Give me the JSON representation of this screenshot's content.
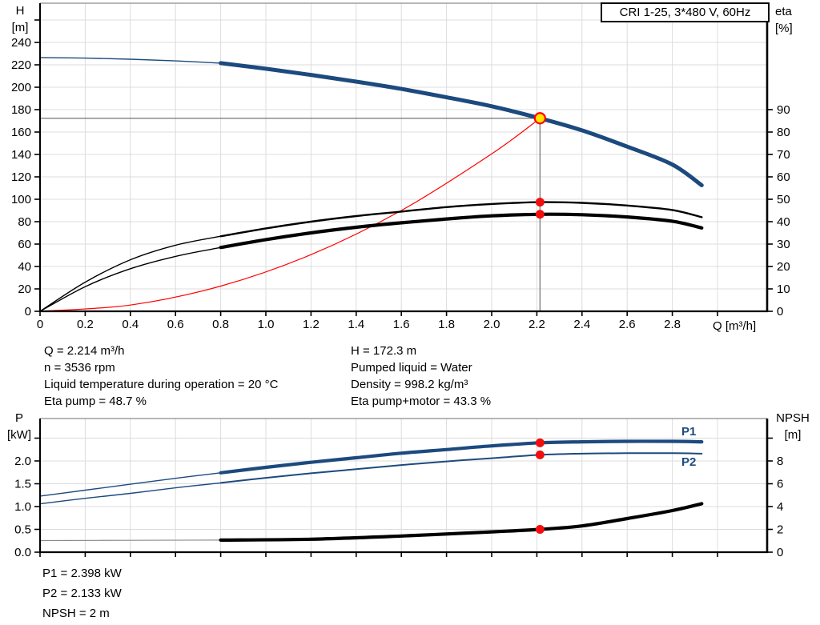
{
  "title_box": {
    "label": "CRI 1-25, 3*480 V, 60Hz"
  },
  "colors": {
    "curve_blue": "#1c4a7e",
    "curve_red": "#ff0000",
    "curve_black": "#000000",
    "npsh_thin_gray": "#8a8a8a",
    "grid": "#dcdcdc",
    "plot_top_border": "#8c8c8c",
    "op_line": "#7f7f7f",
    "marker_red": "#f00e0e",
    "marker_yellow": "#ffe600",
    "label_blue": "#1c4a7e"
  },
  "chart_data": [
    {
      "type": "line",
      "name": "hq-eta-chart",
      "x": {
        "label": "Q [m³/h]",
        "range": [
          0,
          3.22
        ],
        "ticks": [
          {
            "q": 0,
            "label": "0"
          },
          {
            "q": 0.2,
            "label": "0.2"
          },
          {
            "q": 0.4,
            "label": "0.4"
          },
          {
            "q": 0.6,
            "label": "0.6"
          },
          {
            "q": 0.8,
            "label": "0.8"
          },
          {
            "q": 1,
            "label": "1.0"
          },
          {
            "q": 1.2,
            "label": "1.2"
          },
          {
            "q": 1.4,
            "label": "1.4"
          },
          {
            "q": 1.6,
            "label": "1.6"
          },
          {
            "q": 1.8,
            "label": "1.8"
          },
          {
            "q": 2,
            "label": "2.0"
          },
          {
            "q": 2.2,
            "label": "2.2"
          },
          {
            "q": 2.4,
            "label": "2.4"
          },
          {
            "q": 2.6,
            "label": "2.6"
          },
          {
            "q": 2.8,
            "label": "2.8"
          },
          {
            "q": 3,
            "label": ""
          }
        ]
      },
      "y_left": {
        "label_lines": [
          "H",
          "[m]"
        ],
        "range": [
          0,
          275
        ],
        "ticks": [
          {
            "v": 0,
            "label": "0"
          },
          {
            "v": 20,
            "label": "20"
          },
          {
            "v": 40,
            "label": "40"
          },
          {
            "v": 60,
            "label": "60"
          },
          {
            "v": 80,
            "label": "80"
          },
          {
            "v": 100,
            "label": "100"
          },
          {
            "v": 120,
            "label": "120"
          },
          {
            "v": 140,
            "label": "140"
          },
          {
            "v": 160,
            "label": "160"
          },
          {
            "v": 180,
            "label": "180"
          },
          {
            "v": 200,
            "label": "200"
          },
          {
            "v": 220,
            "label": "220"
          },
          {
            "v": 240,
            "label": "240"
          },
          {
            "v": 260,
            "label": ""
          }
        ]
      },
      "y_right": {
        "label_lines": [
          "eta",
          "[%]"
        ],
        "range": [
          0,
          98
        ],
        "ticks": [
          {
            "v": 0,
            "label": "0"
          },
          {
            "v": 10,
            "label": "10"
          },
          {
            "v": 20,
            "label": "20"
          },
          {
            "v": 30,
            "label": "30"
          },
          {
            "v": 40,
            "label": "40"
          },
          {
            "v": 50,
            "label": "50"
          },
          {
            "v": 60,
            "label": "60"
          },
          {
            "v": 70,
            "label": "70"
          },
          {
            "v": 80,
            "label": "80"
          },
          {
            "v": 90,
            "label": "90"
          }
        ]
      },
      "op_point": {
        "q": 2.214,
        "v": 172.3
      },
      "series": [
        {
          "id": "pump-curve",
          "label": "",
          "axis": "left",
          "color": "#1c4a7e",
          "segments": [
            {
              "width": 1.4,
              "points": [
                [
                  0,
                  226.5
                ],
                [
                  0.2,
                  226
                ],
                [
                  0.4,
                  225
                ],
                [
                  0.6,
                  223.5
                ],
                [
                  0.8,
                  221.5
                ]
              ]
            },
            {
              "width": 5,
              "points": [
                [
                  0.8,
                  221.5
                ],
                [
                  1.0,
                  216.5
                ],
                [
                  1.2,
                  211
                ],
                [
                  1.4,
                  205
                ],
                [
                  1.6,
                  198.5
                ],
                [
                  1.8,
                  191
                ],
                [
                  2.0,
                  183
                ],
                [
                  2.214,
                  172.3
                ],
                [
                  2.4,
                  161.5
                ],
                [
                  2.6,
                  147
                ],
                [
                  2.8,
                  131
                ],
                [
                  2.93,
                  112.5
                ]
              ]
            }
          ]
        },
        {
          "id": "system-curve",
          "label": "",
          "axis": "left",
          "color": "#ff0000",
          "segments": [
            {
              "width": 1.2,
              "points": [
                [
                  0,
                  0
                ],
                [
                  0.4,
                  5.6
                ],
                [
                  0.8,
                  22.5
                ],
                [
                  1.2,
                  50.6
                ],
                [
                  1.6,
                  90
                ],
                [
                  2.0,
                  140.6
                ],
                [
                  2.214,
                  172.3
                ]
              ]
            }
          ]
        },
        {
          "id": "eta-pump-curve",
          "label": "",
          "axis": "right",
          "color": "#000000",
          "segments": [
            {
              "width": 1.4,
              "points": [
                [
                  0,
                  0
                ],
                [
                  0.2,
                  13
                ],
                [
                  0.4,
                  23
                ],
                [
                  0.6,
                  29.5
                ],
                [
                  0.8,
                  33.5
                ]
              ]
            },
            {
              "width": 2.4,
              "points": [
                [
                  0.8,
                  33.5
                ],
                [
                  1.0,
                  37
                ],
                [
                  1.2,
                  40
                ],
                [
                  1.4,
                  42.5
                ],
                [
                  1.6,
                  44.5
                ],
                [
                  1.8,
                  46.5
                ],
                [
                  2.0,
                  47.9
                ],
                [
                  2.214,
                  48.7
                ],
                [
                  2.4,
                  48.4
                ],
                [
                  2.6,
                  47.2
                ],
                [
                  2.8,
                  45.2
                ],
                [
                  2.93,
                  42
                ]
              ]
            }
          ]
        },
        {
          "id": "eta-pump-motor-curve",
          "label": "",
          "axis": "right",
          "color": "#000000",
          "segments": [
            {
              "width": 1.4,
              "points": [
                [
                  0,
                  0
                ],
                [
                  0.2,
                  11
                ],
                [
                  0.4,
                  19
                ],
                [
                  0.6,
                  24.5
                ],
                [
                  0.8,
                  28.5
                ]
              ]
            },
            {
              "width": 4.2,
              "points": [
                [
                  0.8,
                  28.5
                ],
                [
                  1.0,
                  32
                ],
                [
                  1.2,
                  35
                ],
                [
                  1.4,
                  37.5
                ],
                [
                  1.6,
                  39.5
                ],
                [
                  1.8,
                  41.2
                ],
                [
                  2.0,
                  42.6
                ],
                [
                  2.214,
                  43.3
                ],
                [
                  2.4,
                  43.1
                ],
                [
                  2.6,
                  42.1
                ],
                [
                  2.8,
                  40.2
                ],
                [
                  2.93,
                  37.2
                ]
              ]
            }
          ]
        }
      ],
      "markers": [
        {
          "id": "eta-pump-point",
          "axis": "right",
          "q": 2.214,
          "v": 48.7,
          "r": 5.5,
          "fill": "#f00e0e",
          "interactable": false
        },
        {
          "id": "eta-pump-motor-point",
          "axis": "right",
          "q": 2.214,
          "v": 43.3,
          "r": 5.5,
          "fill": "#f00e0e",
          "interactable": false
        },
        {
          "id": "operating-point",
          "axis": "left",
          "q": 2.214,
          "v": 172.3,
          "r": 6.5,
          "fill": "#ffe600",
          "stroke": "#ff0000",
          "sw": 2.2,
          "interactable": true
        }
      ]
    },
    {
      "type": "line",
      "name": "power-npsh-chart",
      "x": {
        "label": "",
        "range": [
          0,
          3.22
        ],
        "ticks": [
          {
            "q": 0,
            "label": ""
          },
          {
            "q": 0.2,
            "label": ""
          },
          {
            "q": 0.4,
            "label": ""
          },
          {
            "q": 0.6,
            "label": ""
          },
          {
            "q": 0.8,
            "label": ""
          },
          {
            "q": 1,
            "label": ""
          },
          {
            "q": 1.2,
            "label": ""
          },
          {
            "q": 1.4,
            "label": ""
          },
          {
            "q": 1.6,
            "label": ""
          },
          {
            "q": 1.8,
            "label": ""
          },
          {
            "q": 2,
            "label": ""
          },
          {
            "q": 2.2,
            "label": ""
          },
          {
            "q": 2.4,
            "label": ""
          },
          {
            "q": 2.6,
            "label": ""
          },
          {
            "q": 2.8,
            "label": ""
          },
          {
            "q": 3,
            "label": ""
          }
        ]
      },
      "y_left": {
        "label_lines": [
          "P",
          "[kW]"
        ],
        "range": [
          0,
          2.93
        ],
        "ticks": [
          {
            "v": 0,
            "label": "0.0"
          },
          {
            "v": 0.5,
            "label": "0.5"
          },
          {
            "v": 1,
            "label": "1.0"
          },
          {
            "v": 1.5,
            "label": "1.5"
          },
          {
            "v": 2,
            "label": "2.0"
          },
          {
            "v": 2.5,
            "label": ""
          }
        ]
      },
      "y_right": {
        "label_lines": [
          "NPSH",
          "[m]"
        ],
        "range": [
          0,
          11.7
        ],
        "ticks": [
          {
            "v": 0,
            "label": "0"
          },
          {
            "v": 2,
            "label": "2"
          },
          {
            "v": 4,
            "label": "4"
          },
          {
            "v": 6,
            "label": "6"
          },
          {
            "v": 8,
            "label": "8"
          },
          {
            "v": 10,
            "label": ""
          }
        ]
      },
      "series": [
        {
          "id": "p1-curve",
          "label": "P1",
          "axis": "left",
          "color": "#1c4a7e",
          "segments": [
            {
              "width": 1.4,
              "points": [
                [
                  0,
                  1.23
                ],
                [
                  0.2,
                  1.36
                ],
                [
                  0.4,
                  1.49
                ],
                [
                  0.6,
                  1.62
                ],
                [
                  0.8,
                  1.74
                ]
              ]
            },
            {
              "width": 4.2,
              "points": [
                [
                  0.8,
                  1.74
                ],
                [
                  1.0,
                  1.86
                ],
                [
                  1.2,
                  1.97
                ],
                [
                  1.4,
                  2.07
                ],
                [
                  1.6,
                  2.17
                ],
                [
                  1.8,
                  2.25
                ],
                [
                  2.0,
                  2.33
                ],
                [
                  2.214,
                  2.398
                ],
                [
                  2.4,
                  2.42
                ],
                [
                  2.6,
                  2.43
                ],
                [
                  2.8,
                  2.43
                ],
                [
                  2.93,
                  2.42
                ]
              ]
            }
          ]
        },
        {
          "id": "p2-curve",
          "label": "P2",
          "axis": "left",
          "color": "#1c4a7e",
          "segments": [
            {
              "width": 1.4,
              "points": [
                [
                  0,
                  1.06
                ],
                [
                  0.2,
                  1.18
                ],
                [
                  0.4,
                  1.29
                ],
                [
                  0.6,
                  1.41
                ],
                [
                  0.8,
                  1.52
                ]
              ]
            },
            {
              "width": 2,
              "points": [
                [
                  0.8,
                  1.52
                ],
                [
                  1.0,
                  1.63
                ],
                [
                  1.2,
                  1.73
                ],
                [
                  1.4,
                  1.82
                ],
                [
                  1.6,
                  1.91
                ],
                [
                  1.8,
                  1.99
                ],
                [
                  2.0,
                  2.06
                ],
                [
                  2.214,
                  2.133
                ],
                [
                  2.4,
                  2.16
                ],
                [
                  2.6,
                  2.17
                ],
                [
                  2.8,
                  2.17
                ],
                [
                  2.93,
                  2.16
                ]
              ]
            }
          ]
        },
        {
          "id": "npsh-curve",
          "label": "NPSH",
          "axis": "right",
          "color": "#000000",
          "segments": [
            {
              "width": 1.2,
              "color": "#8a8a8a",
              "points": [
                [
                  0,
                  1.02
                ],
                [
                  0.4,
                  1.04
                ],
                [
                  0.8,
                  1.06
                ]
              ]
            },
            {
              "width": 4.2,
              "points": [
                [
                  0.8,
                  1.06
                ],
                [
                  1.2,
                  1.14
                ],
                [
                  1.6,
                  1.42
                ],
                [
                  2.0,
                  1.78
                ],
                [
                  2.214,
                  2.0
                ],
                [
                  2.4,
                  2.3
                ],
                [
                  2.6,
                  2.95
                ],
                [
                  2.8,
                  3.65
                ],
                [
                  2.93,
                  4.25
                ]
              ]
            }
          ]
        }
      ],
      "markers": [
        {
          "id": "p1-point",
          "axis": "left",
          "q": 2.214,
          "v": 2.398,
          "r": 5.5,
          "fill": "#f00e0e",
          "interactable": false
        },
        {
          "id": "p2-point",
          "axis": "left",
          "q": 2.214,
          "v": 2.133,
          "r": 5.5,
          "fill": "#f00e0e",
          "interactable": false
        },
        {
          "id": "npsh-point",
          "axis": "right",
          "q": 2.214,
          "v": 2,
          "r": 5.5,
          "fill": "#f00e0e",
          "interactable": false
        }
      ]
    }
  ],
  "annotations": {
    "info_top_left": [
      "Q = 2.214 m³/h",
      "n = 3536 rpm",
      "Liquid temperature during operation = 20 °C",
      "Eta pump = 48.7 %"
    ],
    "info_top_right": [
      "H = 172.3 m",
      "Pumped liquid = Water",
      "Density = 998.2 kg/m³",
      "Eta pump+motor = 43.3 %"
    ],
    "info_bottom": [
      "P1 = 2.398 kW",
      "P2 = 2.133 kW",
      "NPSH = 2 m"
    ]
  }
}
